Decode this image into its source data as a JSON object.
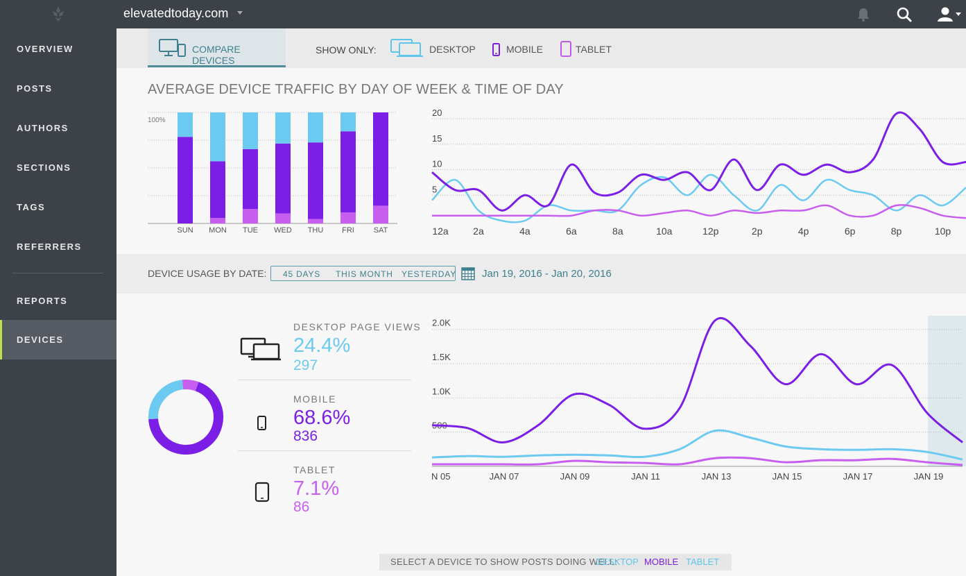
{
  "topbar": {
    "site_name": "elevatedtoday.com",
    "icons": [
      "logo-icon",
      "bell-icon",
      "search-icon",
      "user-icon"
    ]
  },
  "sidebar": {
    "items": [
      {
        "label": "OVERVIEW"
      },
      {
        "label": "POSTS"
      },
      {
        "label": "AUTHORS"
      },
      {
        "label": "SECTIONS"
      },
      {
        "label": "TAGS"
      },
      {
        "label": "REFERRERS"
      },
      {
        "label": "REPORTS"
      },
      {
        "label": "DEVICES"
      }
    ],
    "active": "DEVICES"
  },
  "toolbar": {
    "compare_label": "COMPARE DEVICES",
    "show_only_label": "SHOW ONLY:",
    "filters": [
      {
        "label": "DESKTOP",
        "color": "#5bc6ea"
      },
      {
        "label": "MOBILE",
        "color": "#7a1fe0"
      },
      {
        "label": "TABLET",
        "color": "#c05be8"
      }
    ]
  },
  "colors": {
    "desktop": "#6ccaf0",
    "mobile": "#7b1fe6",
    "tablet": "#c85ef0",
    "accent": "#3d7f8e",
    "active_nav_border": "#bde04c"
  },
  "traffic": {
    "title": "AVERAGE DEVICE TRAFFIC BY DAY OF WEEK & TIME OF DAY"
  },
  "usage": {
    "label": "DEVICE USAGE BY DATE:",
    "ranges": [
      "45 DAYS",
      "THIS MONTH",
      "YESTERDAY"
    ],
    "date_range": "Jan 19, 2016 - Jan 20, 2016"
  },
  "stats": {
    "desktop": {
      "label": "DESKTOP PAGE VIEWS",
      "pct": "24.4%",
      "count": "297"
    },
    "mobile": {
      "label": "MOBILE",
      "pct": "68.6%",
      "count": "836"
    },
    "tablet": {
      "label": "TABLET",
      "pct": "7.1%",
      "count": "86"
    }
  },
  "bottom": {
    "label": "SELECT A DEVICE TO SHOW POSTS DOING WELL:",
    "options": [
      "DESKTOP",
      "MOBILE",
      "TABLET"
    ]
  },
  "chart_data": [
    {
      "type": "bar",
      "stacked": true,
      "title": "",
      "ylabel": "100%",
      "categories": [
        "SUN",
        "MON",
        "TUE",
        "WED",
        "THU",
        "FRI",
        "SAT"
      ],
      "series": [
        {
          "name": "Tablet",
          "values": [
            0,
            5,
            13,
            9,
            4,
            10,
            16
          ]
        },
        {
          "name": "Mobile",
          "values": [
            78,
            51,
            54,
            63,
            69,
            73,
            84
          ]
        },
        {
          "name": "Desktop",
          "values": [
            22,
            44,
            33,
            28,
            27,
            17,
            0
          ]
        }
      ],
      "ylim": [
        0,
        100
      ]
    },
    {
      "type": "line",
      "title": "",
      "xticks": [
        "12a",
        "2a",
        "4a",
        "6a",
        "8a",
        "10a",
        "12p",
        "2p",
        "4p",
        "6p",
        "8p",
        "10p"
      ],
      "yticks": [
        5,
        10,
        15,
        20
      ],
      "ylim": [
        0,
        21.5
      ],
      "x": [
        0,
        1,
        2,
        3,
        4,
        5,
        6,
        7,
        8,
        9,
        10,
        11,
        12,
        13,
        14,
        15,
        16,
        17,
        18,
        19,
        20,
        21,
        22,
        23
      ],
      "series": [
        {
          "name": "Mobile",
          "values": [
            9.5,
            6,
            6,
            2,
            5,
            3,
            11,
            5.5,
            5.5,
            9,
            8,
            9.5,
            6,
            12,
            6,
            11,
            9,
            11,
            9.5,
            12,
            21,
            18,
            11.5,
            11.5
          ]
        },
        {
          "name": "Desktop",
          "values": [
            4,
            8,
            2,
            0,
            0,
            3,
            2,
            2,
            2,
            7,
            8.5,
            5,
            9,
            5,
            2,
            7,
            4,
            8,
            6,
            5,
            2,
            5,
            3,
            6.5
          ]
        },
        {
          "name": "Tablet",
          "values": [
            1,
            1,
            1,
            1,
            1,
            1,
            1,
            2,
            2,
            1,
            1.5,
            2,
            1,
            2,
            1.5,
            2,
            2,
            3,
            1,
            1,
            3,
            2.5,
            1,
            0.5
          ]
        }
      ]
    },
    {
      "type": "line",
      "title": "",
      "xticks": [
        "N 05",
        "JAN 07",
        "JAN 09",
        "JAN 11",
        "JAN 13",
        "JAN 15",
        "JAN 17",
        "JAN 19"
      ],
      "yticks": [
        "500",
        "1.0K",
        "1.5K",
        "2.0K"
      ],
      "ylim": [
        0,
        2200
      ],
      "x": [
        "JAN 05",
        "JAN 06",
        "JAN 07",
        "JAN 08",
        "JAN 09",
        "JAN 10",
        "JAN 11",
        "JAN 12",
        "JAN 13",
        "JAN 14",
        "JAN 15",
        "JAN 16",
        "JAN 17",
        "JAN 18",
        "JAN 19",
        "JAN 20"
      ],
      "series": [
        {
          "name": "Mobile",
          "values": [
            600,
            560,
            350,
            600,
            1050,
            900,
            550,
            850,
            2130,
            1760,
            1200,
            1640,
            1200,
            1480,
            780,
            350
          ]
        },
        {
          "name": "Desktop",
          "values": [
            130,
            150,
            140,
            160,
            170,
            160,
            140,
            250,
            520,
            420,
            290,
            250,
            240,
            250,
            210,
            100
          ]
        },
        {
          "name": "Tablet",
          "values": [
            30,
            30,
            30,
            30,
            80,
            60,
            50,
            30,
            120,
            120,
            60,
            90,
            90,
            110,
            60,
            20
          ]
        }
      ],
      "highlight": "JAN 20"
    }
  ]
}
